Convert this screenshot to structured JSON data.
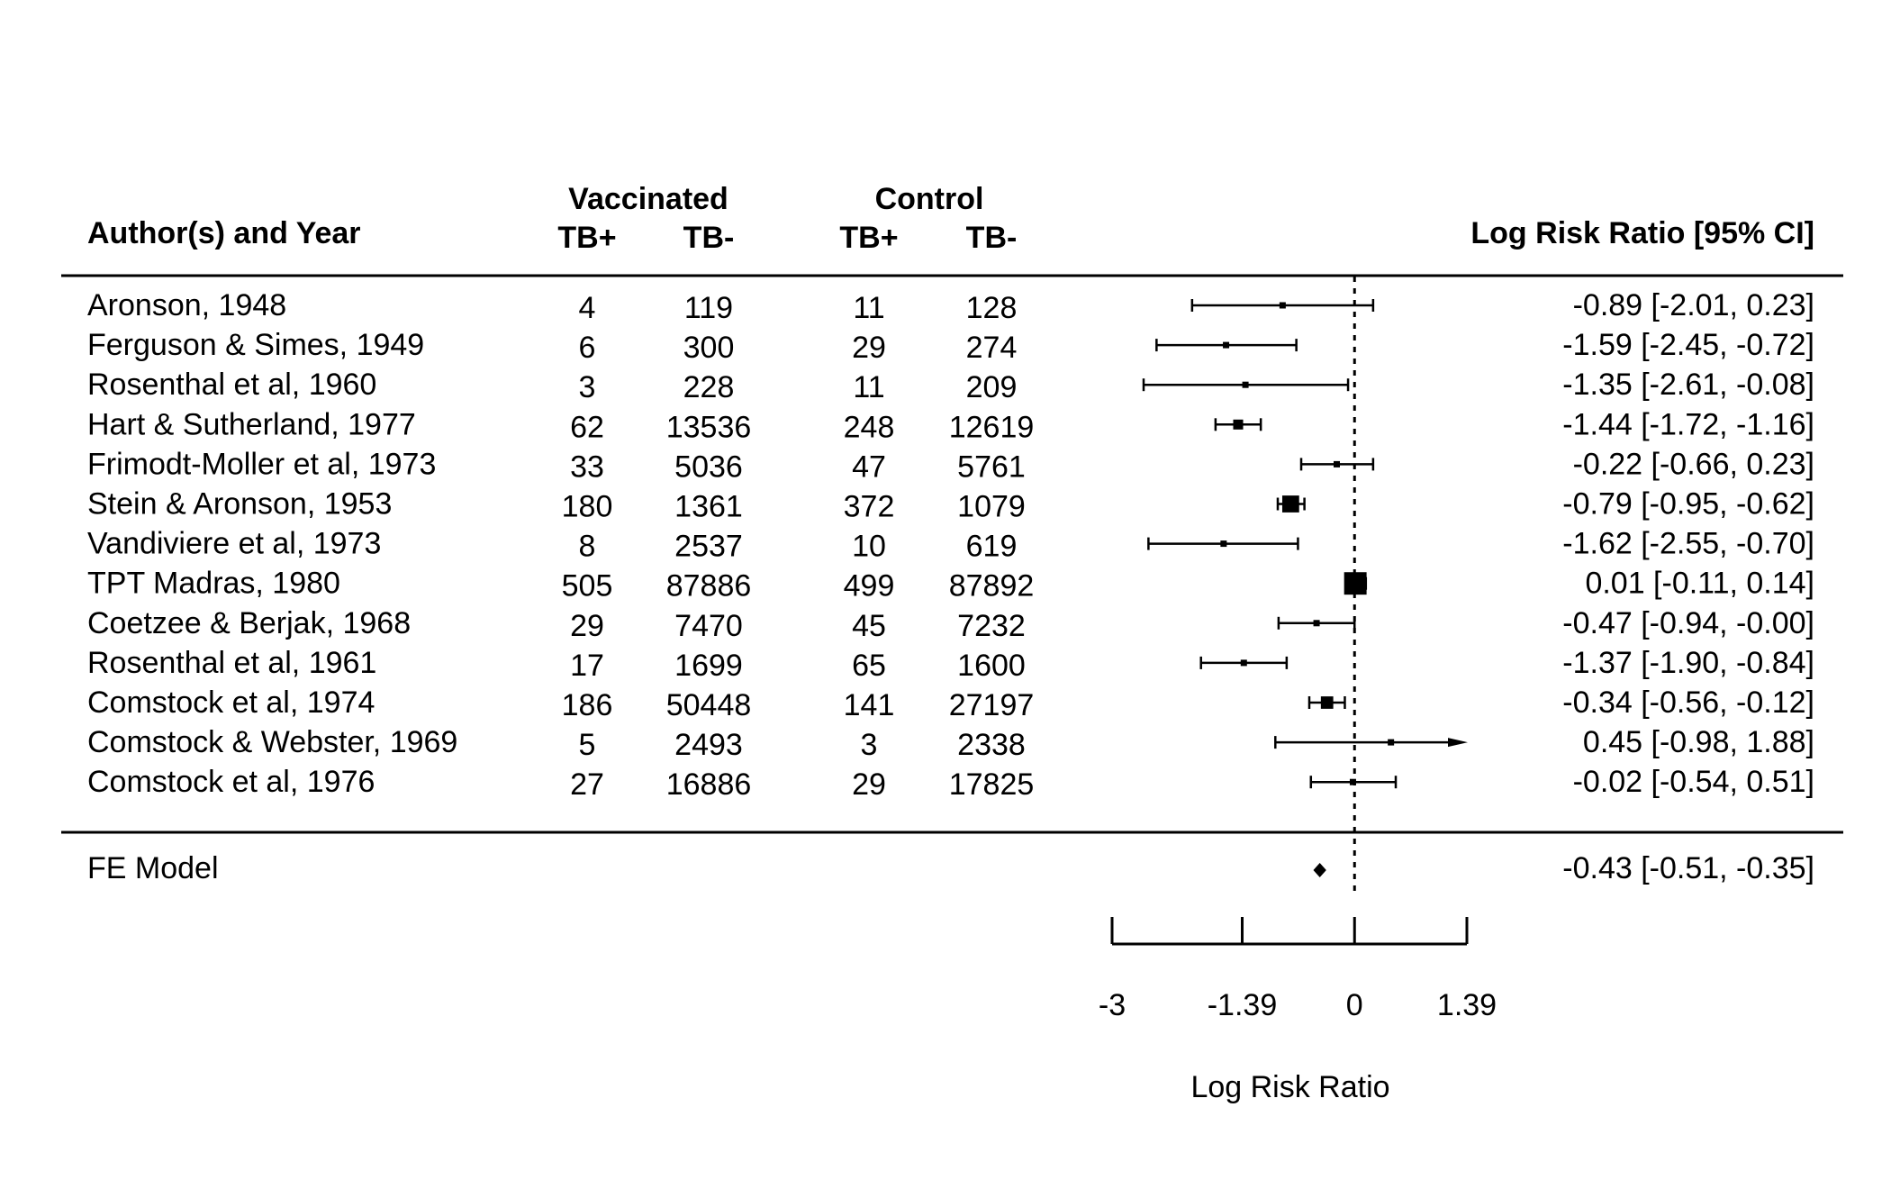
{
  "chart_data": {
    "type": "forest",
    "headers": {
      "study": "Author(s) and Year",
      "group1": "Vaccinated",
      "group2": "Control",
      "tb_pos": "TB+",
      "tb_neg": "TB-",
      "estimate": "Log Risk Ratio [95% CI]"
    },
    "rows": [
      {
        "study": "Aronson, 1948",
        "v_pos": "4",
        "v_neg": "119",
        "c_pos": "11",
        "c_neg": "128",
        "est": -0.89,
        "lo": -2.01,
        "hi": 0.23,
        "label": "-0.89 [-2.01,  0.23]",
        "weight": 0.3
      },
      {
        "study": "Ferguson & Simes, 1949",
        "v_pos": "6",
        "v_neg": "300",
        "c_pos": "29",
        "c_neg": "274",
        "est": -1.59,
        "lo": -2.45,
        "hi": -0.72,
        "label": "-1.59 [-2.45, -0.72]",
        "weight": 0.5
      },
      {
        "study": "Rosenthal et al, 1960",
        "v_pos": "3",
        "v_neg": "228",
        "c_pos": "11",
        "c_neg": "209",
        "est": -1.35,
        "lo": -2.61,
        "hi": -0.08,
        "label": "-1.35 [-2.61, -0.08]",
        "weight": 0.25
      },
      {
        "study": "Hart & Sutherland, 1977",
        "v_pos": "62",
        "v_neg": "13536",
        "c_pos": "248",
        "c_neg": "12619",
        "est": -1.44,
        "lo": -1.72,
        "hi": -1.16,
        "label": "-1.44 [-1.72, -1.16]",
        "weight": 4.5
      },
      {
        "study": "Frimodt-Moller et al, 1973",
        "v_pos": "33",
        "v_neg": "5036",
        "c_pos": "47",
        "c_neg": "5761",
        "est": -0.22,
        "lo": -0.66,
        "hi": 0.23,
        "label": "-0.22 [-0.66,  0.23]",
        "weight": 1.8
      },
      {
        "study": "Stein & Aronson, 1953",
        "v_pos": "180",
        "v_neg": "1361",
        "c_pos": "372",
        "c_neg": "1079",
        "est": -0.79,
        "lo": -0.95,
        "hi": -0.62,
        "label": "-0.79 [-0.95, -0.62]",
        "weight": 13
      },
      {
        "study": "Vandiviere et al, 1973",
        "v_pos": "8",
        "v_neg": "2537",
        "c_pos": "10",
        "c_neg": "619",
        "est": -1.62,
        "lo": -2.55,
        "hi": -0.7,
        "label": "-1.62 [-2.55, -0.70]",
        "weight": 0.45
      },
      {
        "study": "TPT Madras, 1980",
        "v_pos": "505",
        "v_neg": "87886",
        "c_pos": "499",
        "c_neg": "87892",
        "est": 0.01,
        "lo": -0.11,
        "hi": 0.14,
        "label": " 0.01 [-0.11,  0.14]",
        "weight": 23
      },
      {
        "study": "Coetzee & Berjak, 1968",
        "v_pos": "29",
        "v_neg": "7470",
        "c_pos": "45",
        "c_neg": "7232",
        "est": -0.47,
        "lo": -0.94,
        "hi": -0.0,
        "label": "-0.47 [-0.94, -0.00]",
        "weight": 1.6
      },
      {
        "study": "Rosenthal et al, 1961",
        "v_pos": "17",
        "v_neg": "1699",
        "c_pos": "65",
        "c_neg": "1600",
        "est": -1.37,
        "lo": -1.9,
        "hi": -0.84,
        "label": "-1.37 [-1.90, -0.84]",
        "weight": 1.2
      },
      {
        "study": "Comstock et al, 1974",
        "v_pos": "186",
        "v_neg": "50448",
        "c_pos": "141",
        "c_neg": "27197",
        "est": -0.34,
        "lo": -0.56,
        "hi": -0.12,
        "label": "-0.34 [-0.56, -0.12]",
        "weight": 7
      },
      {
        "study": "Comstock & Webster, 1969",
        "v_pos": "5",
        "v_neg": "2493",
        "c_pos": "3",
        "c_neg": "2338",
        "est": 0.45,
        "lo": -0.98,
        "hi": 1.88,
        "label": " 0.45 [-0.98,  1.88]",
        "weight": 0.3
      },
      {
        "study": "Comstock et al, 1976",
        "v_pos": "27",
        "v_neg": "16886",
        "c_pos": "29",
        "c_neg": "17825",
        "est": -0.02,
        "lo": -0.54,
        "hi": 0.51,
        "label": "-0.02 [-0.54,  0.51]",
        "weight": 1.5
      }
    ],
    "summary": {
      "study": "FE Model",
      "est": -0.43,
      "lo": -0.51,
      "hi": -0.35,
      "label": "-0.43 [-0.51, -0.35]"
    },
    "x_axis": {
      "label": "Log Risk Ratio",
      "ticks": [
        -3,
        -1.39,
        0,
        1.39
      ],
      "tick_labels": [
        "-3",
        "-1.39",
        "0",
        "1.39"
      ],
      "xlim": [
        -3,
        1.39
      ]
    },
    "reference_line": 0,
    "grid": false
  }
}
